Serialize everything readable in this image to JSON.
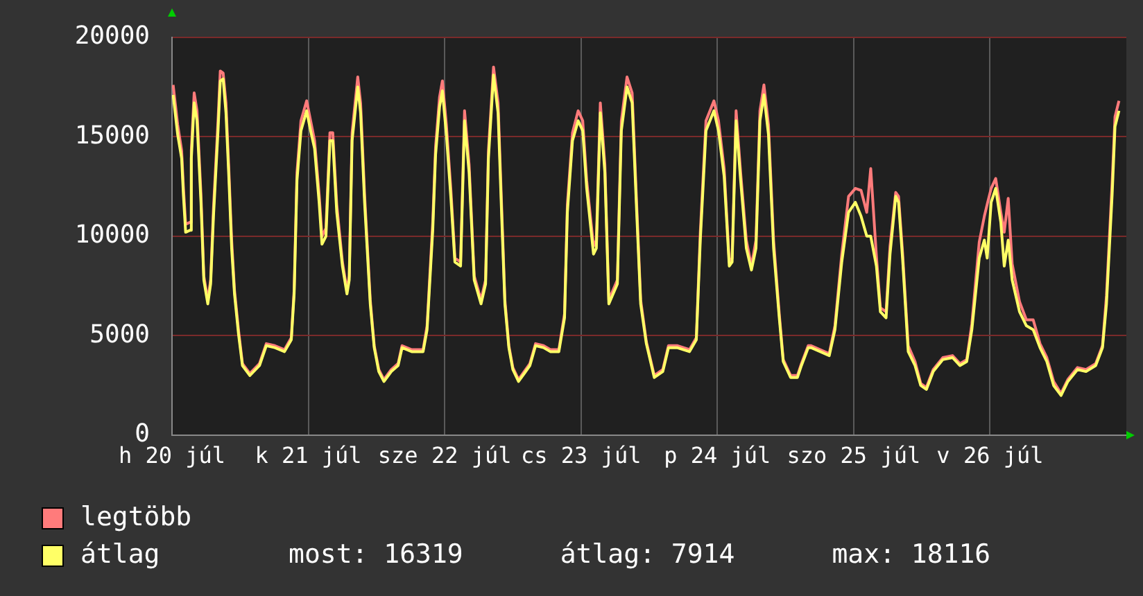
{
  "chart_data": {
    "type": "line",
    "x": [
      "--07-20T00:12",
      "--07-20T01:00",
      "--07-20T01:42",
      "--07-20T02:00",
      "--07-20T02:24",
      "--07-20T03:12",
      "--07-20T03:24",
      "--07-20T03:54",
      "--07-20T04:24",
      "--07-20T05:06",
      "--07-20T05:36",
      "--07-20T06:18",
      "--07-20T06:48",
      "--07-20T07:18",
      "--07-20T08:06",
      "--07-20T08:30",
      "--07-20T09:00",
      "--07-20T09:30",
      "--07-20T10:00",
      "--07-20T10:30",
      "--07-20T11:00",
      "--07-20T11:42",
      "--07-20T12:24",
      "--07-20T13:42",
      "--07-20T15:24",
      "--07-20T16:36",
      "--07-20T18:06",
      "--07-20T19:48",
      "--07-20T21:00",
      "--07-20T21:30",
      "--07-20T22:00",
      "--07-20T22:42",
      "--07-20T23:42",
      "--07-21T00:24",
      "--07-21T01:06",
      "--07-21T01:54",
      "--07-21T02:24",
      "--07-21T03:06",
      "--07-21T03:48",
      "--07-21T04:18",
      "--07-21T05:00",
      "--07-21T06:00",
      "--07-21T06:48",
      "--07-21T07:12",
      "--07-21T07:42",
      "--07-21T08:42",
      "--07-21T09:12",
      "--07-21T09:54",
      "--07-21T10:54",
      "--07-21T11:36",
      "--07-21T12:24",
      "--07-21T13:18",
      "--07-21T14:36",
      "--07-21T15:48",
      "--07-21T16:30",
      "--07-21T18:12",
      "--07-21T20:12",
      "--07-21T20:54",
      "--07-21T21:54",
      "--07-21T22:24",
      "--07-21T23:06",
      "--07-21T23:36",
      "--07-22T00:18",
      "--07-22T01:06",
      "--07-22T01:48",
      "--07-22T02:48",
      "--07-22T03:30",
      "--07-22T04:18",
      "--07-22T05:12",
      "--07-22T06:24",
      "--07-22T07:12",
      "--07-22T07:42",
      "--07-22T08:36",
      "--07-22T09:24",
      "--07-22T10:06",
      "--07-22T10:36",
      "--07-22T11:18",
      "--07-22T12:00",
      "--07-22T13:00",
      "--07-22T14:00",
      "--07-22T15:00",
      "--07-22T16:00",
      "--07-22T17:24",
      "--07-22T18:36",
      "--07-22T20:06",
      "--07-22T21:06",
      "--07-22T21:36",
      "--07-22T22:30",
      "--07-22T23:30",
      "--07-23T00:18",
      "--07-23T01:00",
      "--07-23T02:12",
      "--07-23T02:42",
      "--07-23T03:24",
      "--07-23T04:12",
      "--07-23T04:54",
      "--07-23T06:24",
      "--07-23T07:06",
      "--07-23T08:06",
      "--07-23T09:00",
      "--07-23T09:48",
      "--07-23T10:30",
      "--07-23T11:30",
      "--07-23T12:54",
      "--07-23T14:24",
      "--07-23T15:24",
      "--07-23T16:54",
      "--07-23T19:06",
      "--07-23T20:18",
      "--07-23T21:00",
      "--07-23T22:00",
      "--07-23T23:24",
      "--07-24T00:12",
      "--07-24T01:12",
      "--07-24T02:06",
      "--07-24T02:36",
      "--07-24T03:18",
      "--07-24T04:06",
      "--07-24T05:06",
      "--07-24T06:00",
      "--07-24T06:48",
      "--07-24T07:30",
      "--07-24T08:12",
      "--07-24T09:00",
      "--07-24T09:54",
      "--07-24T10:54",
      "--07-24T11:36",
      "--07-24T12:54",
      "--07-24T14:06",
      "--07-24T14:48",
      "--07-24T16:00",
      "--07-24T16:30",
      "--07-24T19:42",
      "--07-24T20:42",
      "--07-24T21:54",
      "--07-24T23:06",
      "--07-25T00:18",
      "--07-25T01:18",
      "--07-25T02:18",
      "--07-25T03:00",
      "--07-25T04:00",
      "--07-25T04:42",
      "--07-25T05:42",
      "--07-25T06:24",
      "--07-25T07:24",
      "--07-25T07:54",
      "--07-25T08:36",
      "--07-25T09:36",
      "--07-25T10:48",
      "--07-25T11:48",
      "--07-25T12:48",
      "--07-25T14:00",
      "--07-25T15:42",
      "--07-25T17:24",
      "--07-25T18:42",
      "--07-25T19:54",
      "--07-25T20:48",
      "--07-25T22:06",
      "--07-25T23:00",
      "--07-25T23:30",
      "--07-26T00:12",
      "--07-26T01:00",
      "--07-26T01:54",
      "--07-26T02:30",
      "--07-26T03:12",
      "--07-26T03:54",
      "--07-26T05:12",
      "--07-26T06:24",
      "--07-26T07:36",
      "--07-26T08:48",
      "--07-26T10:00",
      "--07-26T11:12",
      "--07-26T12:30",
      "--07-26T13:42",
      "--07-26T15:24",
      "--07-26T16:54",
      "--07-26T18:36",
      "--07-26T19:48",
      "--07-26T20:30",
      "--07-26T21:30",
      "--07-26T22:00",
      "--07-26T22:42"
    ],
    "series": [
      {
        "name": "legtöbb",
        "color": "#ff7b7b",
        "values": [
          17600,
          15600,
          14300,
          12500,
          10600,
          10700,
          14300,
          17200,
          16300,
          12100,
          8000,
          6800,
          7800,
          11400,
          15800,
          18300,
          18200,
          16700,
          13400,
          9800,
          7300,
          5300,
          3600,
          3100,
          3600,
          4600,
          4500,
          4300,
          4900,
          7300,
          13200,
          15800,
          16800,
          15800,
          14800,
          12100,
          10000,
          10400,
          15200,
          15200,
          11600,
          8700,
          7300,
          8000,
          15200,
          18000,
          16700,
          12100,
          6800,
          4500,
          3300,
          2800,
          3300,
          3600,
          4500,
          4300,
          4300,
          5500,
          10700,
          14500,
          17000,
          17800,
          15600,
          12300,
          8900,
          8700,
          16300,
          13600,
          8000,
          6800,
          7800,
          14300,
          18500,
          16700,
          10900,
          6800,
          4500,
          3400,
          2800,
          3200,
          3600,
          4600,
          4500,
          4300,
          4300,
          6100,
          11600,
          15200,
          16300,
          15800,
          12800,
          9500,
          9800,
          16700,
          13600,
          6800,
          7800,
          15800,
          18000,
          17200,
          11600,
          6800,
          4700,
          3000,
          3300,
          4500,
          4500,
          4300,
          4900,
          10200,
          15800,
          16800,
          15800,
          13400,
          8700,
          8900,
          16300,
          13200,
          9800,
          8500,
          9800,
          16300,
          17600,
          15600,
          9800,
          6100,
          3800,
          3000,
          3000,
          3600,
          4500,
          4500,
          4100,
          5500,
          9100,
          12000,
          12400,
          12300,
          11200,
          13400,
          9000,
          6400,
          6200,
          9500,
          12200,
          12000,
          9200,
          4500,
          3700,
          2600,
          2400,
          3300,
          3900,
          4000,
          3600,
          3800,
          5600,
          9700,
          11000,
          11600,
          12400,
          12900,
          11200,
          10200,
          11900,
          8600,
          6700,
          5800,
          5800,
          4600,
          3900,
          2700,
          2100,
          2800,
          3400,
          3300,
          3600,
          4500,
          7000,
          12700,
          16000,
          16800
        ]
      },
      {
        "name": "átlag",
        "color": "#ffff66",
        "values": [
          17100,
          15100,
          13900,
          12100,
          10200,
          10300,
          13900,
          16700,
          15800,
          11700,
          7800,
          6600,
          7600,
          11000,
          15300,
          17800,
          17900,
          16200,
          13000,
          9400,
          7100,
          5100,
          3500,
          3000,
          3500,
          4500,
          4400,
          4200,
          4800,
          7100,
          12800,
          15300,
          16300,
          15300,
          14400,
          11700,
          9600,
          10000,
          14800,
          14800,
          11200,
          8500,
          7100,
          7800,
          14800,
          17500,
          16200,
          11700,
          6600,
          4400,
          3200,
          2700,
          3200,
          3500,
          4400,
          4200,
          4200,
          5300,
          10300,
          14100,
          16500,
          17300,
          15100,
          11900,
          8700,
          8500,
          15800,
          13200,
          7800,
          6600,
          7600,
          13900,
          18100,
          16200,
          10500,
          6600,
          4400,
          3300,
          2700,
          3100,
          3500,
          4500,
          4400,
          4200,
          4200,
          5900,
          11200,
          14800,
          15800,
          15300,
          12400,
          9100,
          9400,
          16200,
          13200,
          6600,
          7600,
          15300,
          17500,
          16700,
          11200,
          6600,
          4600,
          2900,
          3200,
          4400,
          4400,
          4200,
          4800,
          9800,
          15300,
          16300,
          15300,
          13000,
          8500,
          8700,
          15800,
          12800,
          9400,
          8300,
          9400,
          15800,
          17100,
          15100,
          9400,
          5900,
          3700,
          2900,
          2900,
          3500,
          4400,
          4400,
          4000,
          5300,
          8700,
          11200,
          11700,
          11000,
          10000,
          10000,
          8500,
          6200,
          5900,
          9100,
          12000,
          11700,
          8900,
          4200,
          3500,
          2500,
          2300,
          3200,
          3800,
          3900,
          3500,
          3700,
          5300,
          8900,
          9800,
          8900,
          11700,
          12400,
          10700,
          8500,
          9800,
          7800,
          6200,
          5500,
          5300,
          4400,
          3700,
          2500,
          2000,
          2700,
          3300,
          3200,
          3500,
          4400,
          6600,
          12100,
          15500,
          16300
        ]
      }
    ],
    "xlim": [
      "--07-20T00:00",
      "--07-27T00:00"
    ],
    "xticks": [
      {
        "value": "--07-20",
        "label": "h 20 júl"
      },
      {
        "value": "--07-21",
        "label": "k 21 júl"
      },
      {
        "value": "--07-22",
        "label": "sze 22 júl"
      },
      {
        "value": "--07-23",
        "label": "cs 23 júl"
      },
      {
        "value": "--07-24",
        "label": "p 24 júl"
      },
      {
        "value": "--07-25",
        "label": "szo 25 júl"
      },
      {
        "value": "--07-26",
        "label": "v 26 júl"
      }
    ],
    "ylim": [
      0,
      20000
    ],
    "yticks": [
      0,
      5000,
      10000,
      15000,
      20000
    ],
    "grid": true,
    "legend": "bottom",
    "marker": "none",
    "line_style": "solid",
    "annotations": [
      "most: 16319",
      "átlag: 7914",
      "max: 18116"
    ]
  }
}
